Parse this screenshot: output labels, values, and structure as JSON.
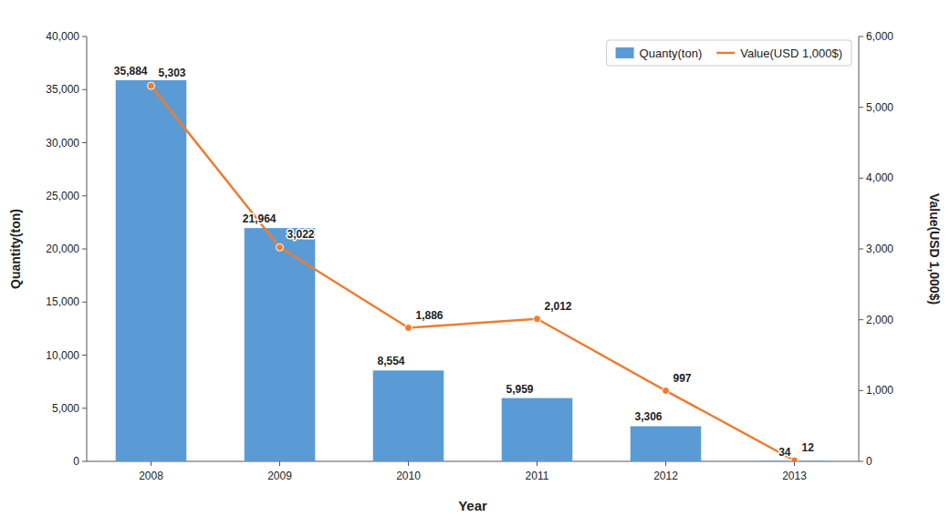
{
  "chart_data": {
    "type": "bar",
    "xlabel": "Year",
    "ylabel": "Quantity(ton)",
    "y2label": "Value(USD 1,000$)",
    "categories": [
      "2008",
      "2009",
      "2010",
      "2011",
      "2012",
      "2013"
    ],
    "series": [
      {
        "name": "Quanty(ton)",
        "type": "bar",
        "color": "#5B9BD5",
        "values": [
          35884,
          21964,
          8554,
          5959,
          3306,
          34
        ],
        "value_labels": [
          "35,884",
          "21,964",
          "8,554",
          "5,959",
          "3,306",
          "34"
        ]
      },
      {
        "name": "Value(USD 1,000$)",
        "type": "line",
        "axis": "y2",
        "color": "#ED7D31",
        "marker": "circle",
        "values": [
          5303,
          3022,
          1886,
          2012,
          997,
          12
        ],
        "value_labels": [
          "5,303",
          "3,022",
          "1,886",
          "2,012",
          "997",
          "12"
        ]
      }
    ],
    "ylim": [
      0,
      40000
    ],
    "yticks": [
      0,
      {
        "value": 5000,
        "label": "5,000"
      },
      {
        "value": 10000,
        "label": "10,000"
      },
      {
        "value": 15000,
        "label": "15,000"
      },
      {
        "value": 20000,
        "label": "20,000"
      },
      {
        "value": 25000,
        "label": "25,000"
      },
      {
        "value": 30000,
        "label": "30,000"
      },
      {
        "value": 35000,
        "label": "35,000"
      },
      {
        "value": 40000,
        "label": "40,000"
      }
    ],
    "y2lim": [
      0,
      6000
    ],
    "y2ticks": [
      0,
      {
        "value": 1000,
        "label": "1,000"
      },
      {
        "value": 2000,
        "label": "2,000"
      },
      {
        "value": 3000,
        "label": "3,000"
      },
      {
        "value": 4000,
        "label": "4,000"
      },
      {
        "value": 5000,
        "label": "5,000"
      },
      {
        "value": 6000,
        "label": "6,000"
      }
    ],
    "data_labels": true,
    "legend": "upper right",
    "grid": false
  }
}
